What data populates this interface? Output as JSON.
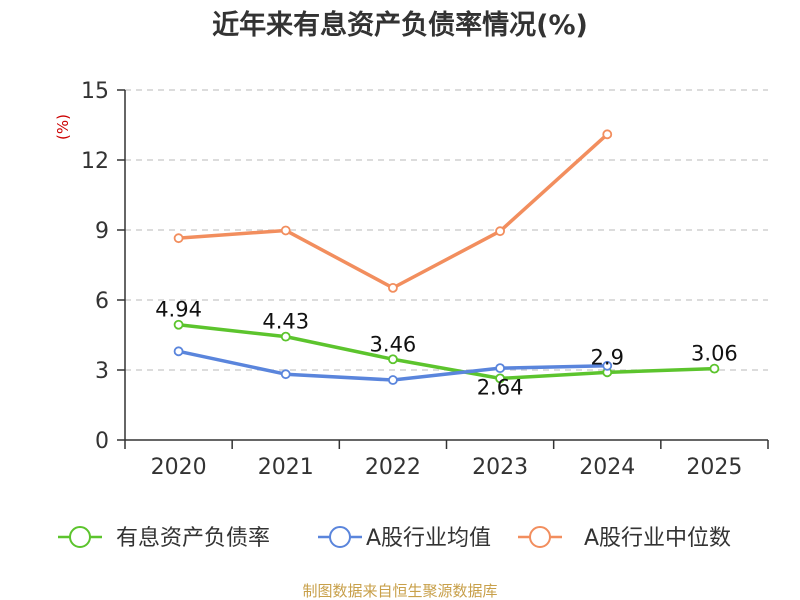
{
  "chart_data": {
    "type": "line",
    "title": "近年来有息资产负债率情况(%)",
    "ylabel": "(%)",
    "categories": [
      "2020",
      "2021",
      "2022",
      "2023",
      "2024",
      "2025"
    ],
    "ylim": [
      0,
      15
    ],
    "yticks": [
      0,
      3,
      6,
      9,
      12,
      15
    ],
    "grid": true,
    "series": [
      {
        "name": "有息资产负债率",
        "color": "#5cc42d",
        "values": [
          4.94,
          4.43,
          3.46,
          2.64,
          2.9,
          3.06
        ],
        "labels": [
          "4.94",
          "4.43",
          "3.46",
          "2.64",
          "2.9",
          "3.06"
        ]
      },
      {
        "name": "A股行业均值",
        "color": "#5a85dc",
        "values": [
          3.8,
          2.82,
          2.57,
          3.08,
          3.18,
          null
        ]
      },
      {
        "name": "A股行业中位数",
        "color": "#f28e5e",
        "values": [
          8.65,
          8.98,
          6.52,
          8.95,
          13.1,
          null
        ]
      }
    ],
    "legend_position": "bottom",
    "source": "制图数据来自恒生聚源数据库"
  }
}
